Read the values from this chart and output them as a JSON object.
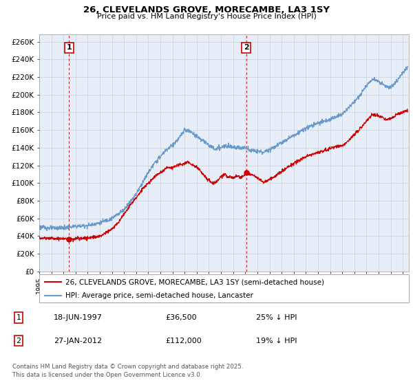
{
  "title_line1": "26, CLEVELANDS GROVE, MORECAMBE, LA3 1SY",
  "title_line2": "Price paid vs. HM Land Registry's House Price Index (HPI)",
  "ylabel_ticks": [
    "£0",
    "£20K",
    "£40K",
    "£60K",
    "£80K",
    "£100K",
    "£120K",
    "£140K",
    "£160K",
    "£180K",
    "£200K",
    "£220K",
    "£240K",
    "£260K"
  ],
  "ytick_values": [
    0,
    20000,
    40000,
    60000,
    80000,
    100000,
    120000,
    140000,
    160000,
    180000,
    200000,
    220000,
    240000,
    260000
  ],
  "ylim": [
    0,
    268000
  ],
  "xlim_start": 1995.0,
  "xlim_end": 2025.5,
  "xtick_years": [
    1995,
    1996,
    1997,
    1998,
    1999,
    2000,
    2001,
    2002,
    2003,
    2004,
    2005,
    2006,
    2007,
    2008,
    2009,
    2010,
    2011,
    2012,
    2013,
    2014,
    2015,
    2016,
    2017,
    2018,
    2019,
    2020,
    2021,
    2022,
    2023,
    2024,
    2025
  ],
  "sale1_date": 1997.46,
  "sale1_price": 36500,
  "sale1_label": "1",
  "sale2_date": 2012.07,
  "sale2_price": 112000,
  "sale2_label": "2",
  "legend_line1": "26, CLEVELANDS GROVE, MORECAMBE, LA3 1SY (semi-detached house)",
  "legend_line2": "HPI: Average price, semi-detached house, Lancaster",
  "table_row1": [
    "1",
    "18-JUN-1997",
    "£36,500",
    "25% ↓ HPI"
  ],
  "table_row2": [
    "2",
    "27-JAN-2012",
    "£112,000",
    "19% ↓ HPI"
  ],
  "footnote": "Contains HM Land Registry data © Crown copyright and database right 2025.\nThis data is licensed under the Open Government Licence v3.0.",
  "price_color": "#cc0000",
  "hpi_color": "#6699cc",
  "plot_bg": "#e8eef8",
  "grid_color": "#c8d0dc"
}
